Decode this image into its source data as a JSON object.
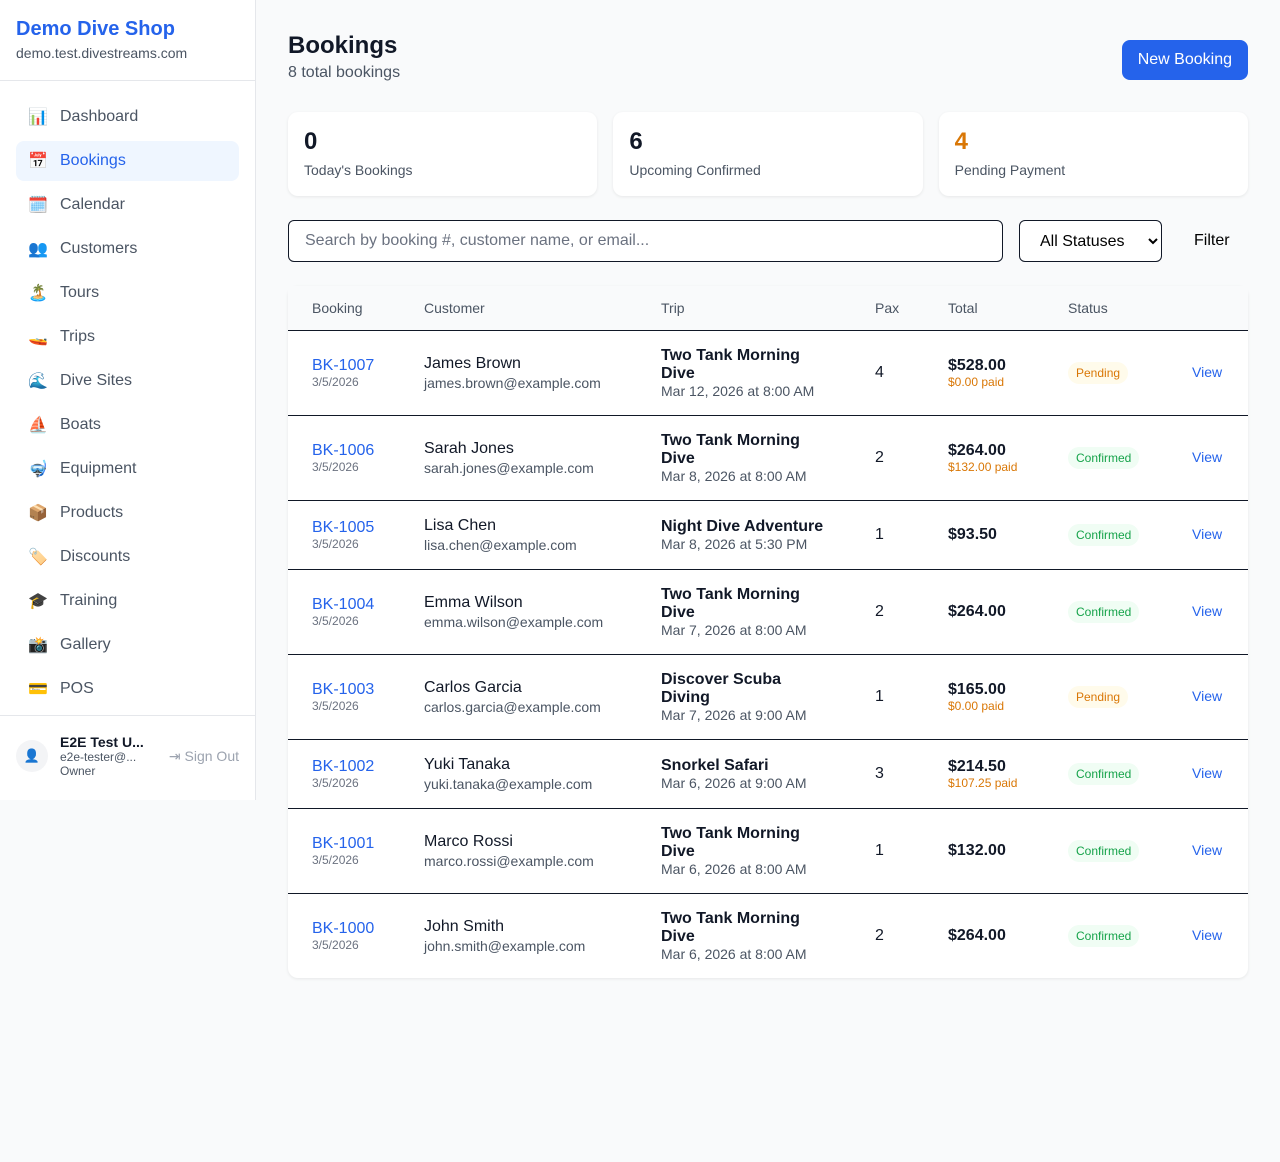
{
  "sidebar": {
    "shop_name": "Demo Dive Shop",
    "domain": "demo.test.divestreams.com",
    "items": [
      {
        "label": "Dashboard",
        "icon": "📊"
      },
      {
        "label": "Bookings",
        "icon": "📅",
        "active": true
      },
      {
        "label": "Calendar",
        "icon": "🗓️"
      },
      {
        "label": "Customers",
        "icon": "👥"
      },
      {
        "label": "Tours",
        "icon": "🏝️"
      },
      {
        "label": "Trips",
        "icon": "🚤"
      },
      {
        "label": "Dive Sites",
        "icon": "🌊"
      },
      {
        "label": "Boats",
        "icon": "⛵"
      },
      {
        "label": "Equipment",
        "icon": "🤿"
      },
      {
        "label": "Products",
        "icon": "📦"
      },
      {
        "label": "Discounts",
        "icon": "🏷️"
      },
      {
        "label": "Training",
        "icon": "🎓"
      },
      {
        "label": "Gallery",
        "icon": "📸"
      },
      {
        "label": "POS",
        "icon": "💳"
      }
    ],
    "user": {
      "name": "E2E Test U...",
      "email": "e2e-tester@...",
      "role": "Owner",
      "sign_out": "Sign Out"
    }
  },
  "header": {
    "title": "Bookings",
    "subtitle": "8 total bookings",
    "new_button": "New Booking"
  },
  "stats": [
    {
      "value": "0",
      "label": "Today's Bookings",
      "color": "#111827"
    },
    {
      "value": "6",
      "label": "Upcoming Confirmed",
      "color": "#111827"
    },
    {
      "value": "4",
      "label": "Pending Payment",
      "color": "#d97706"
    }
  ],
  "filters": {
    "search_placeholder": "Search by booking #, customer name, or email...",
    "status_selected": "All Statuses",
    "filter_button": "Filter"
  },
  "table": {
    "columns": [
      "Booking",
      "Customer",
      "Trip",
      "Pax",
      "Total",
      "Status",
      ""
    ],
    "view_label": "View",
    "rows": [
      {
        "id": "BK-1007",
        "date": "3/5/2026",
        "customer": "James Brown",
        "email": "james.brown@example.com",
        "trip": "Two Tank Morning Dive",
        "trip_date": "Mar 12, 2026 at 8:00 AM",
        "pax": "4",
        "total": "$528.00",
        "paid": "$0.00 paid",
        "status": "Pending"
      },
      {
        "id": "BK-1006",
        "date": "3/5/2026",
        "customer": "Sarah Jones",
        "email": "sarah.jones@example.com",
        "trip": "Two Tank Morning Dive",
        "trip_date": "Mar 8, 2026 at 8:00 AM",
        "pax": "2",
        "total": "$264.00",
        "paid": "$132.00 paid",
        "status": "Confirmed"
      },
      {
        "id": "BK-1005",
        "date": "3/5/2026",
        "customer": "Lisa Chen",
        "email": "lisa.chen@example.com",
        "trip": "Night Dive Adventure",
        "trip_date": "Mar 8, 2026 at 5:30 PM",
        "pax": "1",
        "total": "$93.50",
        "paid": null,
        "status": "Confirmed"
      },
      {
        "id": "BK-1004",
        "date": "3/5/2026",
        "customer": "Emma Wilson",
        "email": "emma.wilson@example.com",
        "trip": "Two Tank Morning Dive",
        "trip_date": "Mar 7, 2026 at 8:00 AM",
        "pax": "2",
        "total": "$264.00",
        "paid": null,
        "status": "Confirmed"
      },
      {
        "id": "BK-1003",
        "date": "3/5/2026",
        "customer": "Carlos Garcia",
        "email": "carlos.garcia@example.com",
        "trip": "Discover Scuba Diving",
        "trip_date": "Mar 7, 2026 at 9:00 AM",
        "pax": "1",
        "total": "$165.00",
        "paid": "$0.00 paid",
        "status": "Pending"
      },
      {
        "id": "BK-1002",
        "date": "3/5/2026",
        "customer": "Yuki Tanaka",
        "email": "yuki.tanaka@example.com",
        "trip": "Snorkel Safari",
        "trip_date": "Mar 6, 2026 at 9:00 AM",
        "pax": "3",
        "total": "$214.50",
        "paid": "$107.25 paid",
        "status": "Confirmed"
      },
      {
        "id": "BK-1001",
        "date": "3/5/2026",
        "customer": "Marco Rossi",
        "email": "marco.rossi@example.com",
        "trip": "Two Tank Morning Dive",
        "trip_date": "Mar 6, 2026 at 8:00 AM",
        "pax": "1",
        "total": "$132.00",
        "paid": null,
        "status": "Confirmed"
      },
      {
        "id": "BK-1000",
        "date": "3/5/2026",
        "customer": "John Smith",
        "email": "john.smith@example.com",
        "trip": "Two Tank Morning Dive",
        "trip_date": "Mar 6, 2026 at 8:00 AM",
        "pax": "2",
        "total": "$264.00",
        "paid": null,
        "status": "Confirmed"
      }
    ]
  }
}
